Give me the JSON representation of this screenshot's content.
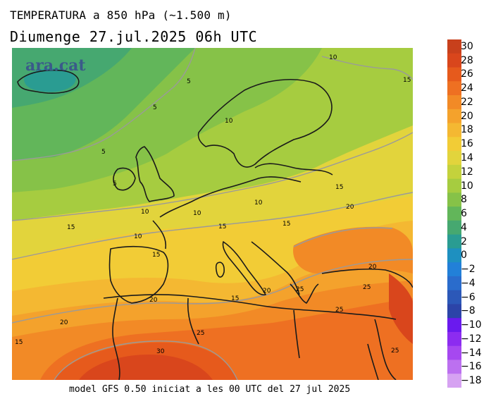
{
  "header": {
    "title": "TEMPERATURA a 850 hPa (~1.500 m)",
    "subtitle": "Diumenge  27.jul.2025 06h UTC"
  },
  "logo": "ara.cat",
  "footer": "model GFS 0.50 iniciat a les 00 UTC del 27 jul 2025",
  "colorbar": {
    "labels": [
      "30",
      "28",
      "26",
      "24",
      "22",
      "20",
      "18",
      "16",
      "14",
      "12",
      "10",
      "8",
      "6",
      "4",
      "2",
      "0",
      "−2",
      "−4",
      "−6",
      "−8",
      "−10",
      "−12",
      "−14",
      "−16",
      "−18"
    ],
    "colors": [
      "#c8401c",
      "#d9461c",
      "#e65a1c",
      "#ee7022",
      "#f28a26",
      "#f4a22c",
      "#f4b832",
      "#f2cc36",
      "#e2d43c",
      "#c4d23c",
      "#a6cc40",
      "#86c248",
      "#62b65a",
      "#46a870",
      "#2a9c92",
      "#1e90c0",
      "#2280d8",
      "#2a6ccc",
      "#2c58b8",
      "#2c44a8",
      "#6a1aee",
      "#8c2cf0",
      "#a648f0",
      "#bc70f0",
      "#d6a2f2"
    ]
  },
  "contour_labels": [
    {
      "text": "10"
    },
    {
      "text": "15"
    },
    {
      "text": "5"
    },
    {
      "text": "5"
    },
    {
      "text": "10"
    },
    {
      "text": "5"
    },
    {
      "text": "5"
    },
    {
      "text": "10"
    },
    {
      "text": "10"
    },
    {
      "text": "10"
    },
    {
      "text": "15"
    },
    {
      "text": "20"
    },
    {
      "text": "15"
    },
    {
      "text": "10"
    },
    {
      "text": "15"
    },
    {
      "text": "15"
    },
    {
      "text": "15"
    },
    {
      "text": "20"
    },
    {
      "text": "20"
    },
    {
      "text": "25"
    },
    {
      "text": "25"
    },
    {
      "text": "20"
    },
    {
      "text": "15"
    },
    {
      "text": "25"
    },
    {
      "text": "20"
    },
    {
      "text": "25"
    },
    {
      "text": "30"
    },
    {
      "text": "15"
    },
    {
      "text": "25"
    }
  ]
}
